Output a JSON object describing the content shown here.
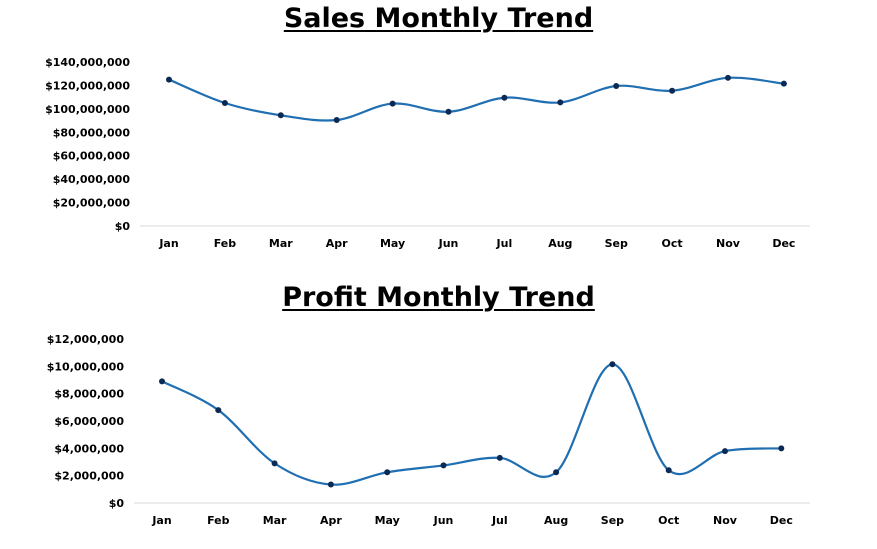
{
  "chart_data": [
    {
      "type": "line",
      "title": "Sales Monthly Trend",
      "categories": [
        "Jan",
        "Feb",
        "Mar",
        "Apr",
        "May",
        "Jun",
        "Jul",
        "Aug",
        "Sep",
        "Oct",
        "Nov",
        "Dec"
      ],
      "y_tick_labels": [
        "$0",
        "$20,000,000",
        "$40,000,000",
        "$60,000,000",
        "$80,000,000",
        "$100,000,000",
        "$120,000,000",
        "$140,000,000"
      ],
      "ylim": [
        0,
        140000000
      ],
      "smooth": true,
      "line_color": "#1f6fb2",
      "marker_color": "#0a2a55",
      "grid": false,
      "series": [
        {
          "values": [
            125000000,
            105000000,
            94500000,
            90500000,
            104500000,
            97500000,
            109500000,
            105500000,
            119500000,
            115500000,
            126500000,
            121500000
          ]
        }
      ]
    },
    {
      "type": "line",
      "title": "Profit Monthly Trend",
      "categories": [
        "Jan",
        "Feb",
        "Mar",
        "Apr",
        "May",
        "Jun",
        "Jul",
        "Aug",
        "Sep",
        "Oct",
        "Nov",
        "Dec"
      ],
      "y_tick_labels": [
        "$0",
        "$2,000,000",
        "$4,000,000",
        "$6,000,000",
        "$8,000,000",
        "$10,000,000",
        "$12,000,000"
      ],
      "ylim": [
        0,
        12000000
      ],
      "smooth": true,
      "line_color": "#1f6fb2",
      "marker_color": "#0a2a55",
      "grid": false,
      "series": [
        {
          "values": [
            8900000,
            6800000,
            2900000,
            1350000,
            2250000,
            2750000,
            3300000,
            2250000,
            10150000,
            2400000,
            3800000,
            4000000
          ]
        }
      ]
    }
  ]
}
